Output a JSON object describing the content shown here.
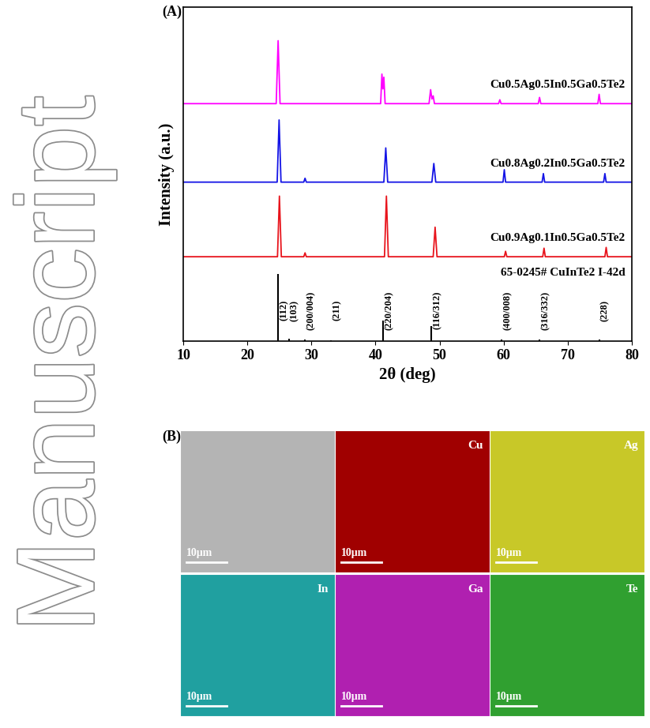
{
  "watermark": "Manuscript",
  "chart_data": {
    "type": "line",
    "panel_label": "(A)",
    "xlabel": "2θ (deg)",
    "ylabel": "Intensity (a.u.)",
    "xlim": [
      10,
      80
    ],
    "xticks": [
      10,
      20,
      30,
      40,
      50,
      60,
      70,
      80
    ],
    "ylim": [
      0,
      430
    ],
    "tick_labels": "x",
    "series": [
      {
        "name": "Cu0.9Ag0.1In0.5Ga0.5Te2",
        "color": "#e8141c",
        "x": [
          10,
          24.7,
          25.0,
          25.3,
          28.8,
          29.0,
          29.2,
          41.4,
          41.7,
          42.0,
          49.0,
          49.3,
          49.6,
          60.1,
          60.3,
          60.5,
          66.1,
          66.3,
          66.5,
          75.8,
          76.0,
          76.2,
          80
        ],
        "values": [
          109,
          109,
          187,
          109,
          109,
          114,
          109,
          109,
          187,
          109,
          109,
          147,
          109,
          109,
          116,
          109,
          109,
          120,
          109,
          109,
          121,
          109,
          109
        ]
      },
      {
        "name": "Cu0.8Ag0.2In0.5Ga0.5Te2",
        "color": "#1414e6",
        "x": [
          10,
          24.65,
          24.95,
          25.25,
          28.8,
          29.0,
          29.2,
          41.3,
          41.6,
          41.9,
          48.8,
          49.1,
          49.4,
          59.9,
          60.1,
          60.3,
          66.0,
          66.2,
          66.4,
          75.6,
          75.8,
          76.0,
          80
        ],
        "values": [
          205,
          205,
          285,
          205,
          205,
          210,
          205,
          205,
          249,
          205,
          205,
          229,
          205,
          205,
          221,
          205,
          205,
          216,
          205,
          205,
          216,
          205,
          205
        ]
      },
      {
        "name": "Cu0.5Ag0.5In0.5Ga0.5Te2",
        "color": "#ff00ff",
        "x": [
          10,
          24.5,
          24.8,
          25.1,
          40.8,
          41.0,
          41.15,
          41.3,
          41.5,
          48.35,
          48.6,
          48.8,
          49.0,
          49.2,
          59.2,
          59.4,
          59.6,
          65.4,
          65.6,
          65.8,
          74.7,
          74.9,
          75.1,
          80
        ],
        "values": [
          306,
          306,
          387,
          306,
          306,
          344,
          325,
          340,
          306,
          306,
          324,
          312,
          316,
          306,
          306,
          311,
          306,
          306,
          314,
          306,
          306,
          318,
          306,
          306
        ]
      }
    ],
    "reference": {
      "name": "65-0245# CuInTe2 I-42d",
      "type": "stick",
      "color": "#000000",
      "x": [
        24.8,
        26.5,
        29.0,
        33.1,
        41.2,
        48.7,
        59.7,
        65.6,
        74.9
      ],
      "values": [
        87,
        3,
        2,
        1,
        27,
        20,
        2,
        2,
        2
      ],
      "labels": [
        "(112)",
        "(103)",
        "(200/004)",
        "(211)",
        "(220/204)",
        "(116/312)",
        "(400/008)",
        "(316/332)",
        "(228)"
      ]
    }
  },
  "maps": {
    "panel_label": "(B)",
    "scale_bar": "10μm",
    "tiles": [
      {
        "color": "#b4b4b4"
      },
      {
        "label": "Cu",
        "color": "#a00000"
      },
      {
        "label": "Ag",
        "color": "#c8c828"
      },
      {
        "label": "In",
        "color": "#20a0a0"
      },
      {
        "label": "Ga",
        "color": "#b020b0"
      },
      {
        "label": "Te",
        "color": "#30a030"
      }
    ]
  }
}
